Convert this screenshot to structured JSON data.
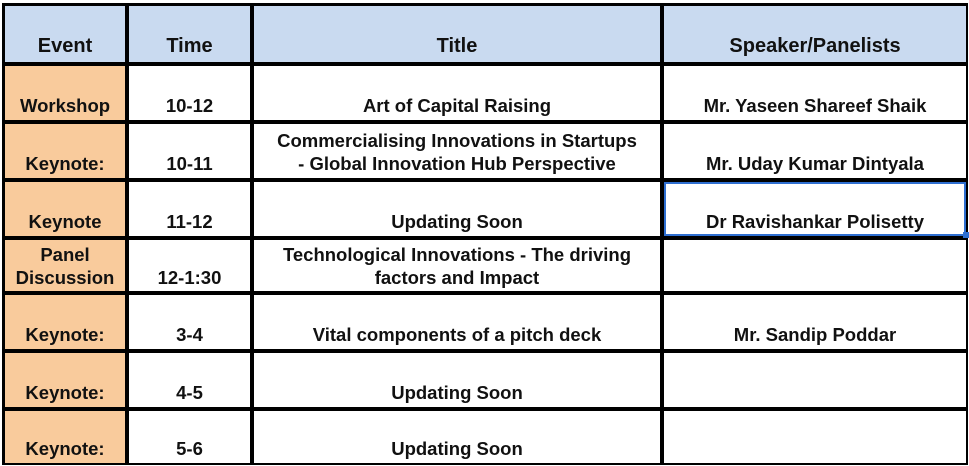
{
  "header": {
    "event": "Event",
    "time": "Time",
    "title": "Title",
    "speaker": "Speaker/Panelists"
  },
  "rows": [
    {
      "event": "Workshop",
      "time": "10-12",
      "title": "Art of Capital Raising",
      "speaker": "Mr. Yaseen Shareef Shaik"
    },
    {
      "event": "Keynote:",
      "time": "10-11",
      "title": "Commercialising Innovations in Startups\n- Global Innovation Hub Perspective",
      "speaker": "Mr. Uday Kumar Dintyala"
    },
    {
      "event": "Keynote",
      "time": "11-12",
      "title": "Updating Soon",
      "speaker": "Dr Ravishankar Polisetty"
    },
    {
      "event": "Panel\nDiscussion",
      "time": "12-1:30",
      "title": "Technological Innovations - The driving\nfactors and Impact",
      "speaker": ""
    },
    {
      "event": "Keynote:",
      "time": "3-4",
      "title": "Vital components of a pitch deck",
      "speaker": "Mr. Sandip Poddar"
    },
    {
      "event": "Keynote:",
      "time": "4-5",
      "title": "Updating Soon",
      "speaker": ""
    },
    {
      "event": "Keynote:",
      "time": "5-6",
      "title": "Updating Soon",
      "speaker": ""
    }
  ],
  "colors": {
    "header_fill": "#c9daf0",
    "event_fill": "#f9cb9c",
    "grid": "#000000",
    "selection": "#2f6fd1"
  }
}
